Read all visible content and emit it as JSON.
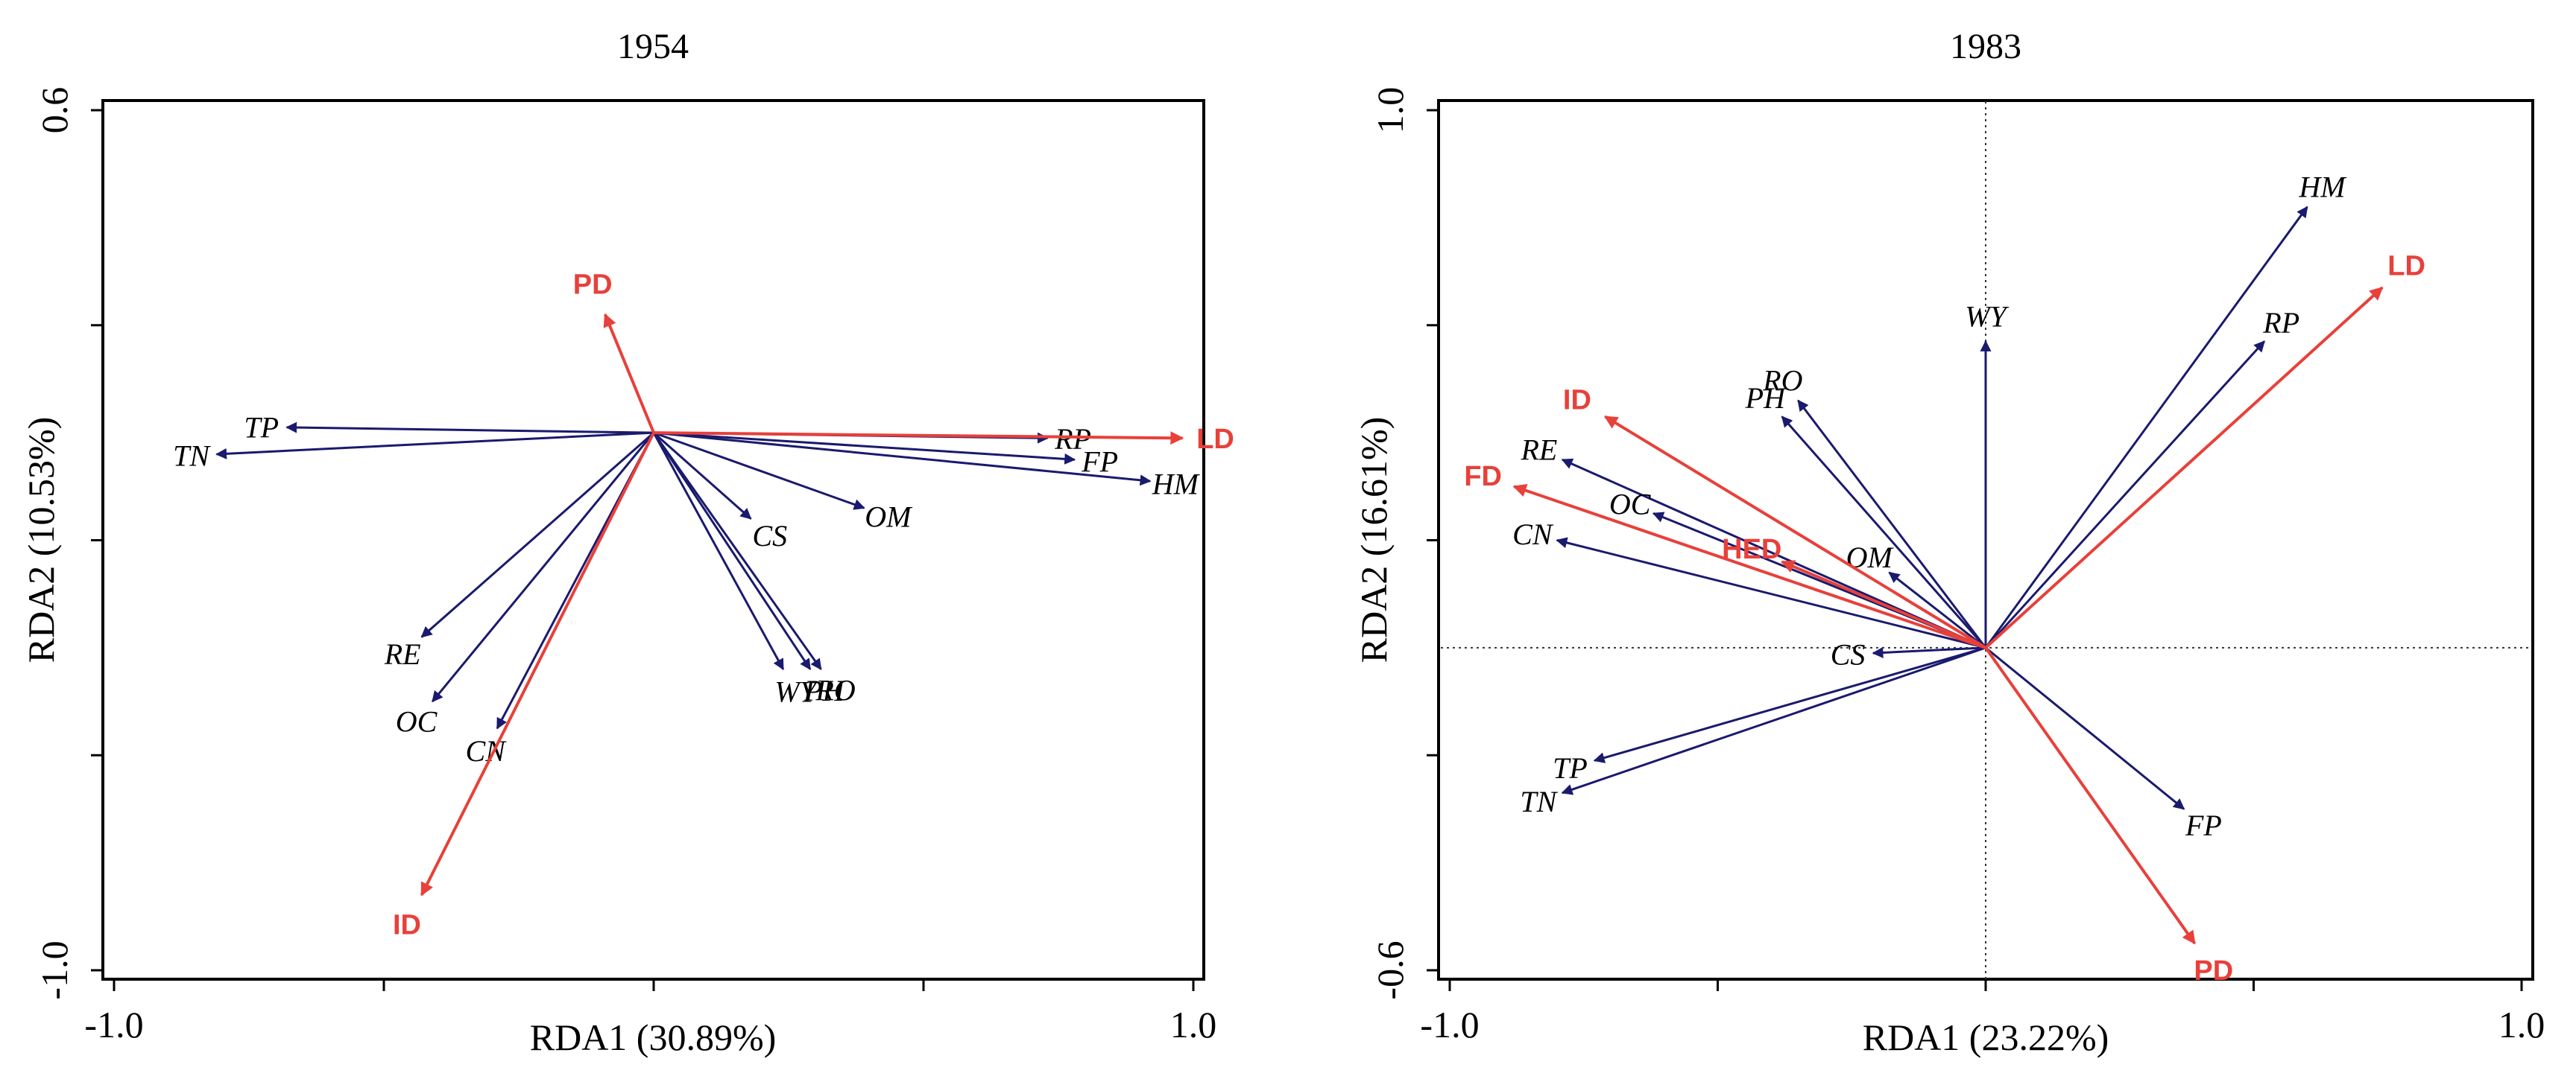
{
  "chart_data": [
    {
      "type": "scatter",
      "subtype": "rda-biplot",
      "title": "1954",
      "xlabel": "RDA1 (30.89%)",
      "ylabel": "RDA2 (10.53%)",
      "xlim": [
        -1.0,
        1.0
      ],
      "ylim": [
        -1.0,
        0.6
      ],
      "xticks": [
        -1.0,
        1.0
      ],
      "xtick_labels": [
        "-1.0",
        "1.0"
      ],
      "yticks": [
        -1.0,
        0.6
      ],
      "ytick_labels": [
        "-1.0",
        "0.6"
      ],
      "zero_lines": false,
      "colors": {
        "species": "#1a1a6e",
        "environment": "#e8403a"
      },
      "species": [
        {
          "name": "TP",
          "x": -0.68,
          "y": 0.01
        },
        {
          "name": "TN",
          "x": -0.81,
          "y": -0.04
        },
        {
          "name": "RP",
          "x": 0.73,
          "y": -0.01
        },
        {
          "name": "FP",
          "x": 0.78,
          "y": -0.05
        },
        {
          "name": "HM",
          "x": 0.92,
          "y": -0.09
        },
        {
          "name": "CS",
          "x": 0.18,
          "y": -0.16
        },
        {
          "name": "OM",
          "x": 0.39,
          "y": -0.14
        },
        {
          "name": "RE",
          "x": -0.43,
          "y": -0.38
        },
        {
          "name": "OC",
          "x": -0.41,
          "y": -0.5
        },
        {
          "name": "CN",
          "x": -0.29,
          "y": -0.55
        },
        {
          "name": "WY",
          "x": 0.24,
          "y": -0.44
        },
        {
          "name": "PH",
          "x": 0.29,
          "y": -0.44
        },
        {
          "name": "RO",
          "x": 0.31,
          "y": -0.44
        }
      ],
      "environment": [
        {
          "name": "PD",
          "x": -0.09,
          "y": 0.22
        },
        {
          "name": "LD",
          "x": 0.98,
          "y": -0.01
        },
        {
          "name": "ID",
          "x": -0.43,
          "y": -0.86
        }
      ]
    },
    {
      "type": "scatter",
      "subtype": "rda-biplot",
      "title": "1983",
      "xlabel": "RDA1 (23.22%)",
      "ylabel": "RDA2 (16.61%)",
      "xlim": [
        -1.0,
        1.0
      ],
      "ylim": [
        -0.6,
        1.0
      ],
      "xticks": [
        -1.0,
        1.0
      ],
      "xtick_labels": [
        "-1.0",
        "1.0"
      ],
      "yticks": [
        -0.6,
        1.0
      ],
      "ytick_labels": [
        "-0.6",
        "1.0"
      ],
      "zero_lines": true,
      "colors": {
        "species": "#1a1a6e",
        "environment": "#e8403a"
      },
      "species": [
        {
          "name": "HM",
          "x": 0.6,
          "y": 0.82
        },
        {
          "name": "RP",
          "x": 0.52,
          "y": 0.57
        },
        {
          "name": "WY",
          "x": 0.0,
          "y": 0.57
        },
        {
          "name": "RO",
          "x": -0.35,
          "y": 0.46
        },
        {
          "name": "PH",
          "x": -0.38,
          "y": 0.43
        },
        {
          "name": "OM",
          "x": -0.18,
          "y": 0.14
        },
        {
          "name": "CS",
          "x": -0.21,
          "y": -0.01
        },
        {
          "name": "RE",
          "x": -0.79,
          "y": 0.35
        },
        {
          "name": "OC",
          "x": -0.62,
          "y": 0.25
        },
        {
          "name": "CN",
          "x": -0.8,
          "y": 0.2
        },
        {
          "name": "TP",
          "x": -0.73,
          "y": -0.21
        },
        {
          "name": "TN",
          "x": -0.79,
          "y": -0.27
        },
        {
          "name": "FP",
          "x": 0.37,
          "y": -0.3
        }
      ],
      "environment": [
        {
          "name": "LD",
          "x": 0.74,
          "y": 0.67
        },
        {
          "name": "ID",
          "x": -0.71,
          "y": 0.43
        },
        {
          "name": "FD",
          "x": -0.88,
          "y": 0.3
        },
        {
          "name": "HED",
          "x": -0.38,
          "y": 0.16
        },
        {
          "name": "PD",
          "x": 0.39,
          "y": -0.55
        }
      ]
    }
  ]
}
